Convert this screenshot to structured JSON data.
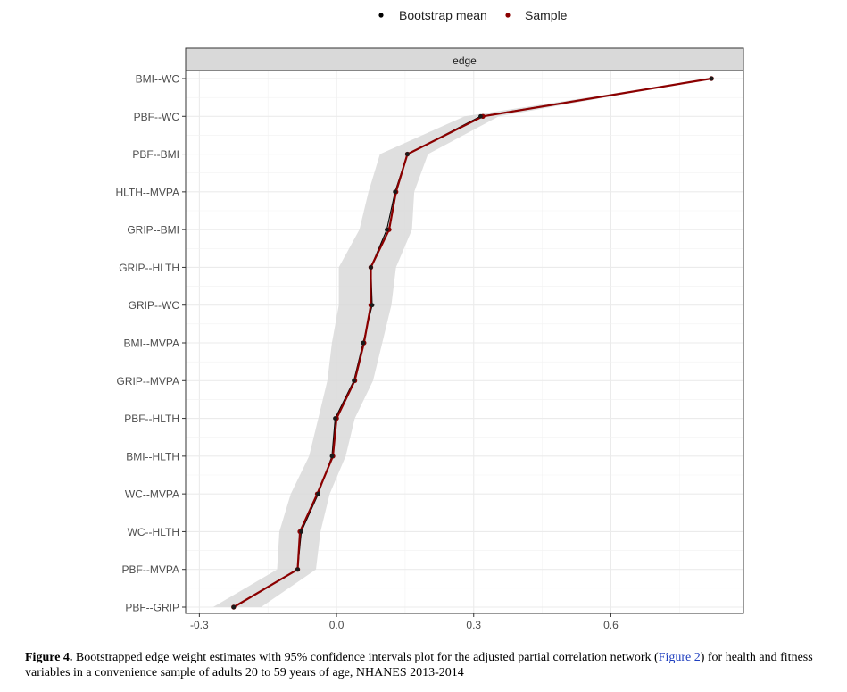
{
  "chart_data": {
    "type": "line",
    "panel_title": "edge",
    "legend": {
      "position": "top",
      "entries": [
        {
          "name": "Bootstrap mean",
          "color": "#000000"
        },
        {
          "name": "Sample",
          "color": "#8b0000"
        }
      ]
    },
    "categories": [
      "BMI--WC",
      "PBF--WC",
      "PBF--BMI",
      "HLTH--MVPA",
      "GRIP--BMI",
      "GRIP--HLTH",
      "GRIP--WC",
      "BMI--MVPA",
      "GRIP--MVPA",
      "PBF--HLTH",
      "BMI--HLTH",
      "WC--MVPA",
      "WC--HLTH",
      "PBF--MVPA",
      "PBF--GRIP"
    ],
    "xlim": [
      -0.33,
      0.89
    ],
    "x_ticks": [
      -0.3,
      0.0,
      0.3,
      0.6
    ],
    "x_tick_labels": [
      "-0.3",
      "0.0",
      "0.3",
      "0.6"
    ],
    "grid": true,
    "series": [
      {
        "name": "Sample",
        "color": "#8b0000",
        "values": [
          0.82,
          0.32,
          0.155,
          0.13,
          0.115,
          0.075,
          0.075,
          0.06,
          0.04,
          0.0,
          -0.008,
          -0.042,
          -0.08,
          -0.085,
          -0.225
        ]
      },
      {
        "name": "Bootstrap mean",
        "color": "#000000",
        "values": [
          0.82,
          0.315,
          0.155,
          0.128,
          0.11,
          0.075,
          0.078,
          0.058,
          0.038,
          -0.003,
          -0.01,
          -0.04,
          -0.077,
          -0.085,
          -0.225
        ]
      }
    ],
    "ci_lower": [
      0.82,
      0.28,
      0.095,
      0.07,
      0.05,
      0.005,
      0.005,
      -0.01,
      -0.02,
      -0.04,
      -0.06,
      -0.1,
      -0.125,
      -0.13,
      -0.27
    ],
    "ci_upper": [
      0.82,
      0.355,
      0.2,
      0.17,
      0.165,
      0.13,
      0.12,
      0.1,
      0.08,
      0.04,
      0.02,
      -0.015,
      -0.035,
      -0.045,
      -0.165
    ]
  },
  "caption": {
    "label": "Figure 4.",
    "text_before": " Bootstrapped edge weight estimates with 95% confidence intervals plot for the adjusted partial correlation network (",
    "link": "Figure 2",
    "text_after": ") for health and fitness variables in a convenience sample of adults 20 to 59 years of age, NHANES 2013-2014"
  }
}
